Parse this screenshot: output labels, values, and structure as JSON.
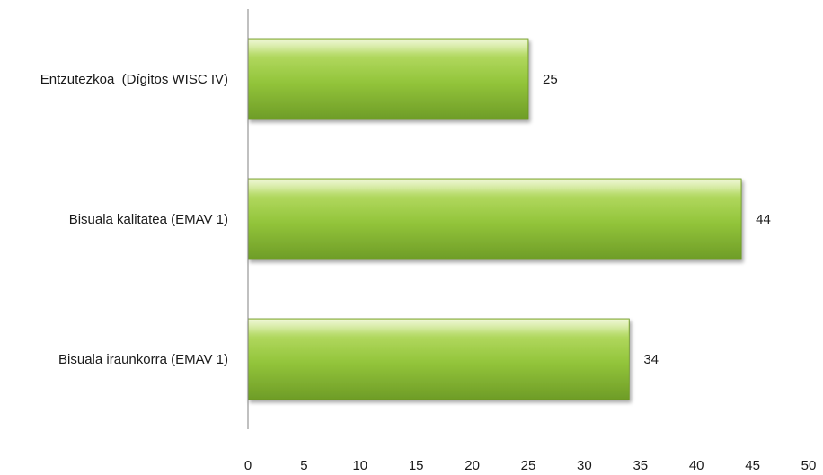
{
  "chart_data": {
    "type": "bar",
    "orientation": "horizontal",
    "title": "",
    "xlabel": "",
    "ylabel": "",
    "categories": [
      "Entzutezkoa  (Dígitos WISC IV)",
      "Bisuala kalitatea (EMAV 1)",
      "Bisuala iraunkorra (EMAV 1)"
    ],
    "values": [
      25,
      44,
      34
    ],
    "xlim": [
      0,
      50
    ],
    "x_ticks": [
      0,
      5,
      10,
      15,
      20,
      25,
      30,
      35,
      40,
      45,
      50
    ],
    "grid": false,
    "legend": "none",
    "data_labels": true,
    "bar_color": "#92c43a"
  }
}
